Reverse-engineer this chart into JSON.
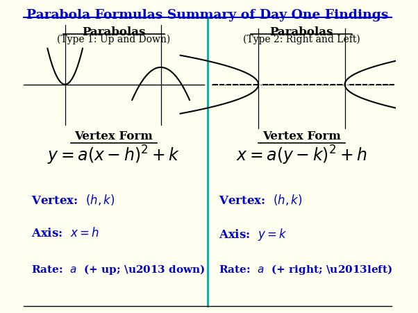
{
  "title": "Parabola Formulas Summary of Day One Findings",
  "title_color": "#0000CC",
  "background_color": "#FFFFF0",
  "divider_color": "#00AAAA",
  "text_color_blue": "#0000CC",
  "text_color_black": "#000000",
  "left_heading": "Parabolas",
  "left_subheading": "(Type 1: Up and Down)",
  "right_heading": "Parabolas",
  "right_subheading": "(Type 2: Right and Left)"
}
